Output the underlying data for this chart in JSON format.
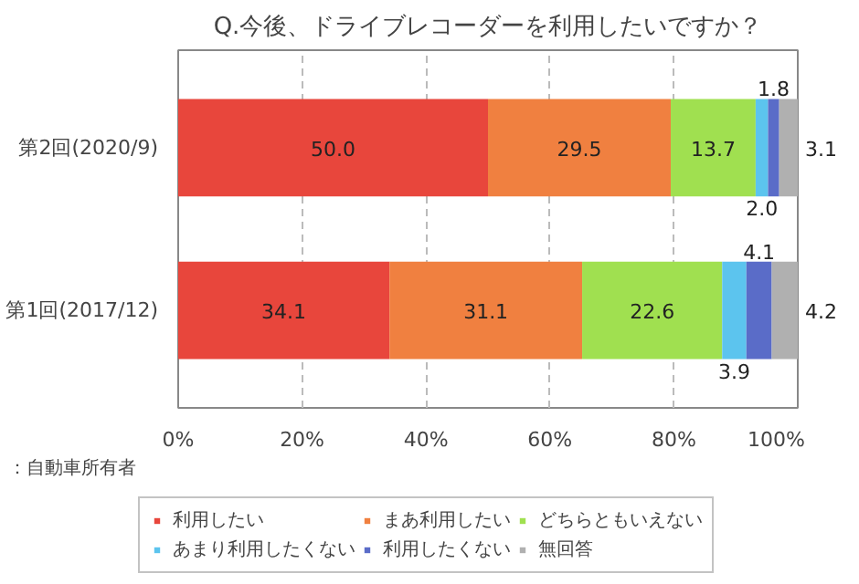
{
  "chart_data": {
    "type": "bar",
    "orientation": "horizontal",
    "stacked": true,
    "title": "Q.今後、ドライブレコーダーを利用したいですか？",
    "categories": [
      "第2回(2020/9)",
      "第1回(2017/12)"
    ],
    "series": [
      {
        "name": "利用したい",
        "color": "#e8463c",
        "values": [
          50.0,
          34.1
        ],
        "value_labels": [
          "50.0",
          "34.1"
        ]
      },
      {
        "name": "まあ利用したい",
        "color": "#f08040",
        "values": [
          29.5,
          31.1
        ],
        "value_labels": [
          "29.5",
          "31.1"
        ]
      },
      {
        "name": "どちらともいえない",
        "color": "#a0e050",
        "values": [
          13.7,
          22.6
        ],
        "value_labels": [
          "13.7",
          "22.6"
        ]
      },
      {
        "name": "あまり利用したくない",
        "color": "#5cc4ee",
        "values": [
          2.0,
          3.9
        ],
        "value_labels": [
          "2.0",
          "3.9"
        ]
      },
      {
        "name": "利用したくない",
        "color": "#5a6cc8",
        "values": [
          1.8,
          4.1
        ],
        "value_labels": [
          "1.8",
          "4.1"
        ]
      },
      {
        "name": "無回答",
        "color": "#b0b0b0",
        "values": [
          3.1,
          4.2
        ],
        "value_labels": [
          "3.1",
          "4.2"
        ]
      }
    ],
    "xlim": [
      0,
      100
    ],
    "xticks": [
      {
        "value": 0,
        "label": "0%"
      },
      {
        "value": 20,
        "label": "20%"
      },
      {
        "value": 40,
        "label": "40%"
      },
      {
        "value": 60,
        "label": "60%"
      },
      {
        "value": 80,
        "label": "80%"
      },
      {
        "value": 100,
        "label": "100%"
      }
    ],
    "grid": "x",
    "legend": "bottom",
    "annotations": [
      "：自動車所有者"
    ]
  }
}
